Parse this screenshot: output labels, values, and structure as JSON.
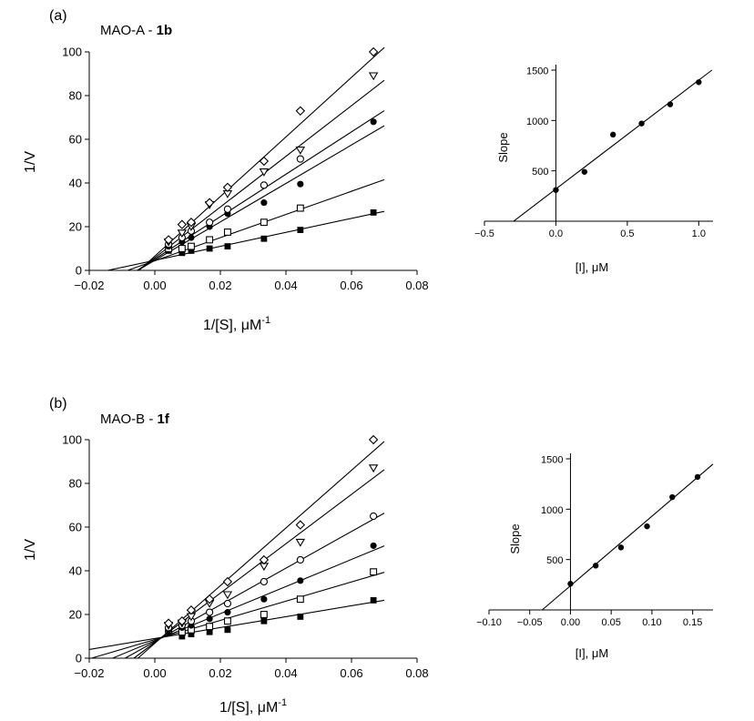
{
  "panels": [
    {
      "letter": "(a)",
      "title_prefix": "MAO-A - ",
      "title_compound": "1b"
    },
    {
      "letter": "(b)",
      "title_prefix": "MAO-B - ",
      "title_compound": "1f"
    }
  ],
  "chart_data": [
    {
      "id": "a-main",
      "type": "scatter",
      "title": "MAO-A - 1b",
      "xlabel": "1/[S], μM",
      "xlabel_sup": "-1",
      "ylabel": "1/V",
      "xlim": [
        -0.02,
        0.08
      ],
      "ylim": [
        0,
        100
      ],
      "xticks": [
        -0.02,
        0.0,
        0.02,
        0.04,
        0.06,
        0.08
      ],
      "xtick_labels": [
        "−0.02",
        "0.00",
        "0.02",
        "0.04",
        "0.06",
        "0.08"
      ],
      "yticks": [
        0,
        20,
        40,
        60,
        80,
        100
      ],
      "ytick_labels": [
        "0",
        "20",
        "40",
        "60",
        "80",
        "100"
      ],
      "x": [
        0.0042,
        0.0083,
        0.0111,
        0.0167,
        0.0222,
        0.0333,
        0.0444,
        0.0667
      ],
      "series": [
        {
          "marker": "filled-square",
          "values": [
            9,
            8,
            9,
            10,
            11,
            14.5,
            18.5,
            26.5
          ],
          "fit": {
            "slope": 320,
            "intercept": 4.6
          }
        },
        {
          "marker": "open-square",
          "values": [
            10,
            10,
            11,
            14,
            17.5,
            22,
            28.5,
            null
          ],
          "fit": {
            "slope": 530,
            "intercept": 4.4
          }
        },
        {
          "marker": "filled-circle",
          "values": [
            11,
            13,
            15,
            20,
            26,
            31,
            39.5,
            68
          ],
          "fit": {
            "slope": 880,
            "intercept": 4.6
          }
        },
        {
          "marker": "open-circle",
          "values": [
            12,
            15,
            18,
            22,
            28,
            39,
            51,
            null
          ],
          "fit": {
            "slope": 970,
            "intercept": 5.2
          }
        },
        {
          "marker": "open-triangle-down",
          "values": [
            13,
            17,
            20,
            30,
            35,
            45,
            55,
            89
          ],
          "fit": {
            "slope": 1160,
            "intercept": 5.8
          }
        },
        {
          "marker": "open-diamond",
          "values": [
            14,
            21,
            22,
            31,
            38,
            50,
            73,
            100
          ],
          "fit": {
            "slope": 1380,
            "intercept": 6.6
          }
        }
      ]
    },
    {
      "id": "a-inset",
      "type": "scatter",
      "xlabel": "[I], μM",
      "ylabel": "Slope",
      "xlim": [
        -0.5,
        1.1
      ],
      "ylim": [
        0,
        1500
      ],
      "xticks": [
        -0.5,
        0.0,
        0.5,
        1.0
      ],
      "xtick_labels": [
        "−0.5",
        "0.0",
        "0.5",
        "1.0"
      ],
      "yticks": [
        500,
        1000,
        1500
      ],
      "ytick_labels": [
        "500",
        "1000",
        "1500"
      ],
      "x": [
        0.0,
        0.2,
        0.4,
        0.6,
        0.8,
        1.0
      ],
      "values": [
        310,
        490,
        860,
        970,
        1160,
        1380
      ],
      "fit": {
        "slope": 1080,
        "intercept": 320
      }
    },
    {
      "id": "b-main",
      "type": "scatter",
      "title": "MAO-B - 1f",
      "xlabel": "1/[S], μM",
      "xlabel_sup": "-1",
      "ylabel": "1/V",
      "xlim": [
        -0.02,
        0.08
      ],
      "ylim": [
        0,
        100
      ],
      "xticks": [
        -0.02,
        0.0,
        0.02,
        0.04,
        0.06,
        0.08
      ],
      "xtick_labels": [
        "−0.02",
        "0.00",
        "0.02",
        "0.04",
        "0.06",
        "0.08"
      ],
      "yticks": [
        0,
        20,
        40,
        60,
        80,
        100
      ],
      "ytick_labels": [
        "0",
        "20",
        "40",
        "60",
        "80",
        "100"
      ],
      "x": [
        0.0042,
        0.0083,
        0.0111,
        0.0167,
        0.0222,
        0.0333,
        0.0444,
        0.0667
      ],
      "series": [
        {
          "marker": "filled-square",
          "values": [
            12,
            10,
            11,
            12,
            13,
            17,
            19,
            26.5
          ],
          "fit": {
            "slope": 250,
            "intercept": 9.0
          }
        },
        {
          "marker": "open-square",
          "values": [
            13,
            12,
            13,
            14.5,
            17,
            20,
            27,
            39.5
          ],
          "fit": {
            "slope": 440,
            "intercept": 8.5
          }
        },
        {
          "marker": "filled-circle",
          "values": [
            13,
            14,
            15,
            18,
            21,
            27,
            35.5,
            51.5
          ],
          "fit": {
            "slope": 620,
            "intercept": 8.0
          }
        },
        {
          "marker": "open-circle",
          "values": [
            14,
            15,
            17,
            21,
            25,
            35,
            45,
            65
          ],
          "fit": {
            "slope": 840,
            "intercept": 7.6
          }
        },
        {
          "marker": "open-triangle-down",
          "values": [
            15,
            16,
            19,
            25,
            29,
            42,
            53,
            87
          ],
          "fit": {
            "slope": 1130,
            "intercept": 7.2
          }
        },
        {
          "marker": "open-diamond",
          "values": [
            16,
            17,
            22,
            27,
            35,
            45,
            61,
            100
          ],
          "fit": {
            "slope": 1320,
            "intercept": 6.8
          }
        }
      ]
    },
    {
      "id": "b-inset",
      "type": "scatter",
      "xlabel": "[I], μM",
      "ylabel": "Slope",
      "xlim": [
        -0.1,
        0.175
      ],
      "ylim": [
        0,
        1500
      ],
      "xticks": [
        -0.1,
        -0.05,
        0.0,
        0.05,
        0.1,
        0.15
      ],
      "xtick_labels": [
        "−0.10",
        "−0.05",
        "0.00",
        "0.05",
        "0.10",
        "0.15"
      ],
      "yticks": [
        500,
        1000,
        1500
      ],
      "ytick_labels": [
        "500",
        "1000",
        "1500"
      ],
      "x": [
        0.0,
        0.031,
        0.062,
        0.094,
        0.125,
        0.156
      ],
      "values": [
        260,
        440,
        620,
        830,
        1120,
        1320
      ],
      "fit": {
        "slope": 6900,
        "intercept": 240
      }
    }
  ]
}
